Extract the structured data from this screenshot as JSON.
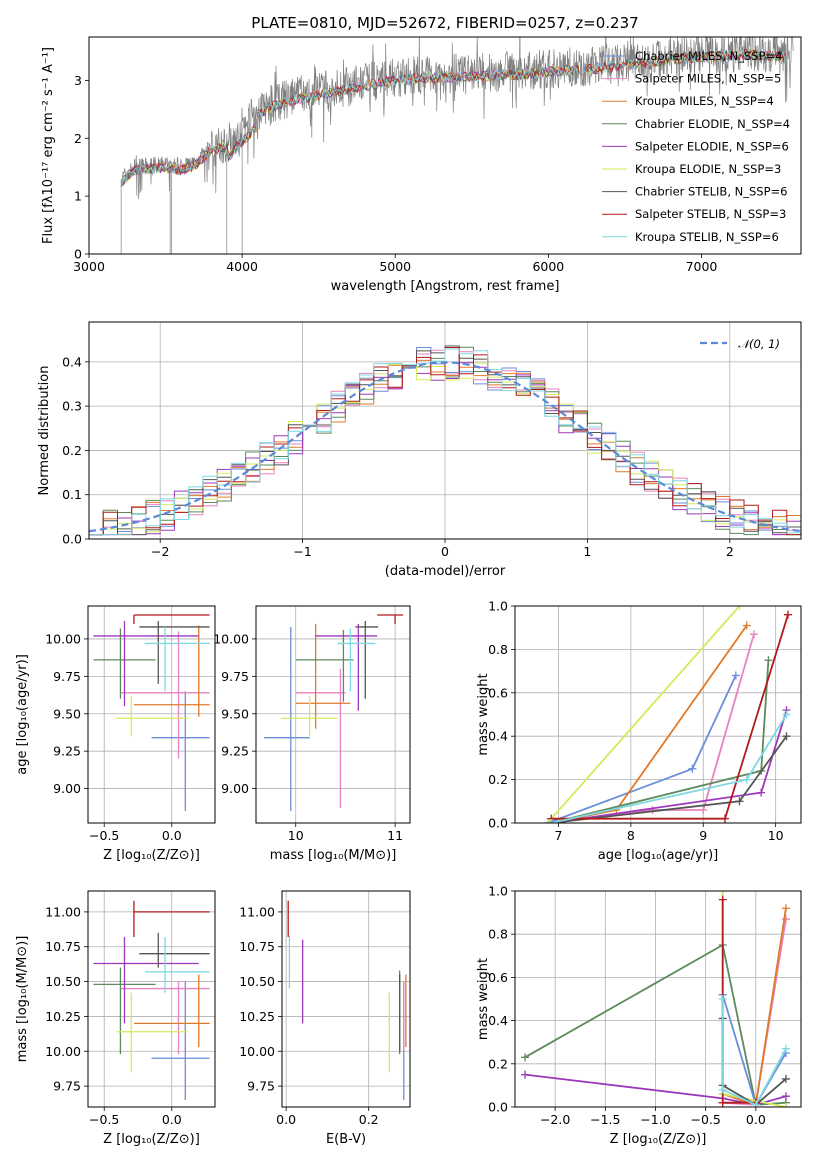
{
  "colors": [
    "#6a8ed8",
    "#e882c0",
    "#e07a2a",
    "#5c8a5c",
    "#9d38bd",
    "#d4ea5c",
    "#555555",
    "#b21a1a",
    "#7fd8e2"
  ],
  "chart_data": [
    {
      "id": "spectrum",
      "type": "line",
      "title": "PLATE=0810, MJD=52672, FIBERID=0257, z=0.237",
      "xlabel": "wavelength [Angstrom, rest frame]",
      "ylabel": "Flux [fλ10⁻¹⁷ erg cm⁻² s⁻¹ A⁻¹]",
      "xlim": [
        3000,
        7650
      ],
      "ylim": [
        0,
        3.75
      ],
      "xticks": [
        "3000",
        "4000",
        "5000",
        "6000",
        "7000"
      ],
      "yticks": [
        "0",
        "1",
        "2",
        "3"
      ],
      "grid": false,
      "legend_position": "right",
      "data_color": "#808080",
      "data_range": [
        3210,
        7600
      ],
      "continuum": {
        "x": [
          3210,
          3300,
          3400,
          3500,
          3600,
          3700,
          3800,
          3900,
          4000,
          4100,
          4200,
          4400,
          4600,
          4800,
          5000,
          5200,
          5500,
          5800,
          6000,
          6300,
          6600,
          6800,
          7000,
          7300,
          7600
        ],
        "y": [
          1.3,
          1.5,
          1.52,
          1.55,
          1.5,
          1.6,
          1.85,
          1.9,
          2.2,
          2.45,
          2.6,
          2.75,
          2.85,
          2.95,
          3.05,
          3.1,
          3.12,
          3.15,
          3.2,
          3.25,
          3.35,
          3.4,
          3.45,
          3.5,
          3.45
        ]
      },
      "series": [
        {
          "name": "Chabrier MILES, N_SSP=4"
        },
        {
          "name": "Salpeter MILES, N_SSP=5"
        },
        {
          "name": "Kroupa MILES, N_SSP=4"
        },
        {
          "name": "Chabrier ELODIE, N_SSP=4"
        },
        {
          "name": "Salpeter ELODIE, N_SSP=6"
        },
        {
          "name": "Kroupa ELODIE, N_SSP=3"
        },
        {
          "name": "Chabrier STELIB, N_SSP=6"
        },
        {
          "name": "Salpeter STELIB, N_SSP=3"
        },
        {
          "name": "Kroupa STELIB, N_SSP=6"
        }
      ]
    },
    {
      "id": "residuals",
      "type": "line",
      "xlabel": "(data-model)/error",
      "ylabel": "Normed distribution",
      "xlim": [
        -2.5,
        2.5
      ],
      "ylim": [
        0,
        0.49
      ],
      "xticks": [
        -2,
        -1,
        0,
        1,
        2
      ],
      "xticklabels": [
        "−2",
        "−1",
        "0",
        "1",
        "2"
      ],
      "yticks": [
        0,
        0.1,
        0.2,
        0.3,
        0.4
      ],
      "yticklabels": [
        "0.0",
        "0.1",
        "0.2",
        "0.3",
        "0.4"
      ],
      "grid": true,
      "legend": "𝒩(0, 1)",
      "legend_position": "upper right",
      "bin_width": 0.1,
      "histogram_note": "step histograms of residuals for the 9 fits, approximately N(0,1)",
      "gaussian": {
        "mean": 0,
        "sigma": 1,
        "color": "#5b8bd6",
        "style": "dashed"
      }
    },
    {
      "id": "age_vs_Z",
      "type": "scatter",
      "xlabel": "Z [log₁₀(Z/Z⊙)]",
      "ylabel": "age  [log₁₀(age/yr)]",
      "xlim": [
        -0.62,
        0.32
      ],
      "ylim": [
        8.77,
        10.22
      ],
      "xticks": [
        -0.5,
        0.0
      ],
      "xticklabels": [
        "−0.5",
        "0.0"
      ],
      "yticks": [
        9.0,
        9.25,
        9.5,
        9.75,
        10.0
      ],
      "yticklabels": [
        "9.00",
        "9.25",
        "9.50",
        "9.75",
        "10.00"
      ],
      "grid": true,
      "points": [
        {
          "series": 0,
          "x": 0.1,
          "xlo": -0.15,
          "xhi": 0.28,
          "y": 9.34,
          "ylo": 8.85,
          "yhi": 9.65
        },
        {
          "series": 1,
          "x": 0.05,
          "xlo": -0.38,
          "xhi": 0.28,
          "y": 9.64,
          "ylo": 9.2,
          "yhi": 10.05
        },
        {
          "series": 2,
          "x": 0.2,
          "xlo": -0.28,
          "xhi": 0.28,
          "y": 9.56,
          "ylo": 9.48,
          "yhi": 10.09
        },
        {
          "series": 3,
          "x": -0.38,
          "xlo": -0.58,
          "xhi": -0.12,
          "y": 9.86,
          "ylo": 9.6,
          "yhi": 10.07
        },
        {
          "series": 4,
          "x": -0.35,
          "xlo": -0.58,
          "xhi": 0.2,
          "y": 10.02,
          "ylo": 9.55,
          "yhi": 10.12
        },
        {
          "series": 5,
          "x": -0.3,
          "xlo": -0.41,
          "xhi": 0.12,
          "y": 9.47,
          "ylo": 9.35,
          "yhi": 9.62
        },
        {
          "series": 6,
          "x": -0.1,
          "xlo": -0.24,
          "xhi": 0.28,
          "y": 10.08,
          "ylo": 9.7,
          "yhi": 10.12
        },
        {
          "series": 7,
          "x": -0.28,
          "xlo": -0.28,
          "xhi": 0.28,
          "y": 10.16,
          "ylo": 10.1,
          "yhi": 10.16
        },
        {
          "series": 8,
          "x": -0.05,
          "xlo": -0.2,
          "xhi": 0.28,
          "y": 9.97,
          "ylo": 9.65,
          "yhi": 10.08
        }
      ]
    },
    {
      "id": "age_vs_mass",
      "type": "scatter",
      "xlabel": "mass [log₁₀(M/M⊙)]",
      "xlim": [
        9.6,
        11.15
      ],
      "ylim": [
        8.77,
        10.22
      ],
      "xticks": [
        10,
        11
      ],
      "xticklabels": [
        "10",
        "11"
      ],
      "yticks": [
        9.0,
        9.25,
        9.5,
        9.75,
        10.0
      ],
      "yticklabels": [
        "9.00",
        "9.25",
        "9.50",
        "9.75",
        "10.00"
      ],
      "grid": true,
      "points": [
        {
          "series": 0,
          "x": 9.95,
          "xlo": 9.68,
          "xhi": 10.14,
          "y": 9.34,
          "ylo": 8.85,
          "yhi": 10.08
        },
        {
          "series": 1,
          "x": 10.45,
          "xlo": 10.0,
          "xhi": 10.5,
          "y": 9.64,
          "ylo": 8.87,
          "yhi": 9.8
        },
        {
          "series": 2,
          "x": 10.2,
          "xlo": 10.0,
          "xhi": 10.55,
          "y": 9.57,
          "ylo": 9.4,
          "yhi": 10.1
        },
        {
          "series": 3,
          "x": 10.48,
          "xlo": 10.0,
          "xhi": 10.58,
          "y": 9.86,
          "ylo": 9.58,
          "yhi": 10.06
        },
        {
          "series": 4,
          "x": 10.63,
          "xlo": 10.2,
          "xhi": 10.82,
          "y": 10.02,
          "ylo": 9.52,
          "yhi": 10.1
        },
        {
          "series": 5,
          "x": 10.14,
          "xlo": 9.85,
          "xhi": 10.42,
          "y": 9.47,
          "ylo": 9.35,
          "yhi": 9.62
        },
        {
          "series": 6,
          "x": 10.7,
          "xlo": 10.6,
          "xhi": 10.83,
          "y": 10.08,
          "ylo": 9.6,
          "yhi": 10.12
        },
        {
          "series": 7,
          "x": 11.0,
          "xlo": 10.82,
          "xhi": 11.08,
          "y": 10.16,
          "ylo": 10.1,
          "yhi": 10.16
        },
        {
          "series": 8,
          "x": 10.55,
          "xlo": 10.42,
          "xhi": 10.8,
          "y": 9.97,
          "ylo": 9.65,
          "yhi": 10.07
        }
      ]
    },
    {
      "id": "mass_weight_vs_age",
      "type": "line",
      "xlabel": "age  [log₁₀(age/yr)]",
      "ylabel": "mass weight",
      "xlim": [
        6.4,
        10.35
      ],
      "ylim": [
        0,
        1.0
      ],
      "xticks": [
        7,
        8,
        9,
        10
      ],
      "xticklabels": [
        "7",
        "8",
        "9",
        "10"
      ],
      "yticks": [
        0,
        0.2,
        0.4,
        0.6,
        0.8,
        1.0
      ],
      "yticklabels": [
        "0.0",
        "0.2",
        "0.4",
        "0.6",
        "0.8",
        "1.0"
      ],
      "grid": true,
      "series": [
        {
          "series": 0,
          "x": [
            6.85,
            8.85,
            9.45
          ],
          "y": [
            0.0,
            0.25,
            0.68
          ]
        },
        {
          "series": 1,
          "x": [
            6.9,
            8.3,
            9.0,
            9.7
          ],
          "y": [
            0.0,
            0.06,
            0.06,
            0.87
          ]
        },
        {
          "series": 2,
          "x": [
            6.9,
            7.8,
            9.6
          ],
          "y": [
            0.0,
            0.06,
            0.91
          ]
        },
        {
          "series": 3,
          "x": [
            6.9,
            9.8,
            9.9
          ],
          "y": [
            0.0,
            0.24,
            0.75
          ]
        },
        {
          "series": 4,
          "x": [
            6.9,
            9.8,
            10.15
          ],
          "y": [
            0.0,
            0.14,
            0.52
          ]
        },
        {
          "series": 5,
          "x": [
            6.85,
            9.5
          ],
          "y": [
            0.0,
            1.0
          ]
        },
        {
          "series": 6,
          "x": [
            6.9,
            9.5,
            10.15
          ],
          "y": [
            0.0,
            0.1,
            0.4
          ]
        },
        {
          "series": 7,
          "x": [
            6.9,
            9.3,
            10.17
          ],
          "y": [
            0.02,
            0.02,
            0.96
          ]
        },
        {
          "series": 8,
          "x": [
            6.9,
            9.6,
            10.15
          ],
          "y": [
            0.0,
            0.2,
            0.5
          ]
        }
      ]
    },
    {
      "id": "mass_vs_Z",
      "type": "scatter",
      "xlabel": "Z [log₁₀(Z/Z⊙)]",
      "ylabel": "mass [log₁₀(M/M⊙)]",
      "xlim": [
        -0.62,
        0.32
      ],
      "ylim": [
        9.6,
        11.15
      ],
      "xticks": [
        -0.5,
        0.0
      ],
      "xticklabels": [
        "−0.5",
        "0.0"
      ],
      "yticks": [
        9.75,
        10.0,
        10.25,
        10.5,
        10.75,
        11.0
      ],
      "yticklabels": [
        "9.75",
        "10.00",
        "10.25",
        "10.50",
        "10.75",
        "11.00"
      ],
      "grid": true,
      "points": [
        {
          "series": 0,
          "x": 0.1,
          "xlo": -0.15,
          "xhi": 0.28,
          "y": 9.95,
          "ylo": 9.65,
          "yhi": 10.5
        },
        {
          "series": 1,
          "x": 0.05,
          "xlo": -0.38,
          "xhi": 0.28,
          "y": 10.45,
          "ylo": 9.98,
          "yhi": 10.5
        },
        {
          "series": 2,
          "x": 0.2,
          "xlo": -0.28,
          "xhi": 0.28,
          "y": 10.2,
          "ylo": 10.03,
          "yhi": 10.55
        },
        {
          "series": 3,
          "x": -0.38,
          "xlo": -0.58,
          "xhi": -0.12,
          "y": 10.48,
          "ylo": 9.98,
          "yhi": 10.6
        },
        {
          "series": 4,
          "x": -0.35,
          "xlo": -0.58,
          "xhi": 0.2,
          "y": 10.63,
          "ylo": 10.2,
          "yhi": 10.82
        },
        {
          "series": 5,
          "x": -0.3,
          "xlo": -0.41,
          "xhi": 0.12,
          "y": 10.14,
          "ylo": 9.85,
          "yhi": 10.42
        },
        {
          "series": 6,
          "x": -0.1,
          "xlo": -0.24,
          "xhi": 0.28,
          "y": 10.7,
          "ylo": 10.6,
          "yhi": 10.85
        },
        {
          "series": 7,
          "x": -0.28,
          "xlo": -0.28,
          "xhi": 0.28,
          "y": 11.0,
          "ylo": 10.82,
          "yhi": 11.08
        },
        {
          "series": 8,
          "x": -0.05,
          "xlo": -0.2,
          "xhi": 0.28,
          "y": 10.57,
          "ylo": 10.42,
          "yhi": 10.82
        }
      ]
    },
    {
      "id": "mass_vs_ebv",
      "type": "scatter",
      "xlabel": "E(B-V)",
      "xlim": [
        -0.01,
        0.3
      ],
      "ylim": [
        9.6,
        11.15
      ],
      "xticks": [
        0.0,
        0.2
      ],
      "xticklabels": [
        "0.0",
        "0.2"
      ],
      "yticks": [
        9.75,
        10.0,
        10.25,
        10.5,
        10.75,
        11.0
      ],
      "yticklabels": [
        "9.75",
        "10.00",
        "10.25",
        "10.50",
        "10.75",
        "11.00"
      ],
      "grid": true,
      "points": [
        {
          "series": 0,
          "x": 0.285,
          "ylo": 9.65,
          "yhi": 10.5
        },
        {
          "series": 1,
          "x": 0.285,
          "ylo": 10.0,
          "yhi": 10.5
        },
        {
          "series": 2,
          "x": 0.29,
          "ylo": 10.03,
          "yhi": 10.55
        },
        {
          "series": 3,
          "x": 0.275,
          "ylo": 9.98,
          "yhi": 10.58
        },
        {
          "series": 4,
          "x": 0.04,
          "ylo": 10.2,
          "yhi": 10.8
        },
        {
          "series": 5,
          "x": 0.25,
          "ylo": 9.85,
          "yhi": 10.42
        },
        {
          "series": 6,
          "x": 0.275,
          "ylo": 10.0,
          "yhi": 10.55
        },
        {
          "series": 7,
          "x": 0.005,
          "ylo": 10.82,
          "yhi": 11.08
        },
        {
          "series": 8,
          "x": 0.008,
          "ylo": 10.45,
          "yhi": 10.83
        }
      ]
    },
    {
      "id": "mass_weight_vs_Z",
      "type": "line",
      "xlabel": "Z [log₁₀(Z/Z⊙)]",
      "ylabel": "mass weight",
      "xlim": [
        -2.4,
        0.45
      ],
      "ylim": [
        0,
        1.0
      ],
      "xticks": [
        -2.0,
        -1.5,
        -1.0,
        -0.5,
        0.0
      ],
      "xticklabels": [
        "−2.0",
        "−1.5",
        "−1.0",
        "−0.5",
        "0.0"
      ],
      "yticks": [
        0,
        0.2,
        0.4,
        0.6,
        0.8,
        1.0
      ],
      "yticklabels": [
        "0.0",
        "0.2",
        "0.4",
        "0.6",
        "0.8",
        "1.0"
      ],
      "grid": true,
      "series": [
        {
          "series": 3,
          "x": [
            -2.3,
            -0.33,
            0.0,
            0.3
          ],
          "y": [
            0.23,
            0.75,
            0.01,
            0.02
          ]
        },
        {
          "series": 4,
          "x": [
            -2.3,
            -0.33,
            0.0,
            0.3
          ],
          "y": [
            0.15,
            0.04,
            0.01,
            0.05
          ]
        },
        {
          "series": 0,
          "x": [
            -0.33,
            0.0,
            0.3
          ],
          "y": [
            0.52,
            0.01,
            0.25
          ]
        },
        {
          "series": 1,
          "x": [
            -0.33,
            0.0,
            0.3
          ],
          "y": [
            0.02,
            0.01,
            0.87
          ]
        },
        {
          "series": 2,
          "x": [
            -0.33,
            0.0,
            0.3
          ],
          "y": [
            0.06,
            0.01,
            0.92
          ]
        },
        {
          "series": 5,
          "x": [
            -0.33,
            -0.33,
            0.3
          ],
          "y": [
            1.0,
            0.06,
            0.0
          ]
        },
        {
          "series": 6,
          "x": [
            -0.33,
            -0.33,
            0.0,
            0.3
          ],
          "y": [
            0.41,
            0.1,
            0.01,
            0.13
          ]
        },
        {
          "series": 7,
          "x": [
            -0.33,
            -0.33,
            0.0
          ],
          "y": [
            0.96,
            0.02,
            0.02
          ]
        },
        {
          "series": 8,
          "x": [
            -0.33,
            -0.33,
            0.0,
            0.3
          ],
          "y": [
            0.5,
            0.08,
            0.01,
            0.27
          ]
        }
      ]
    }
  ]
}
